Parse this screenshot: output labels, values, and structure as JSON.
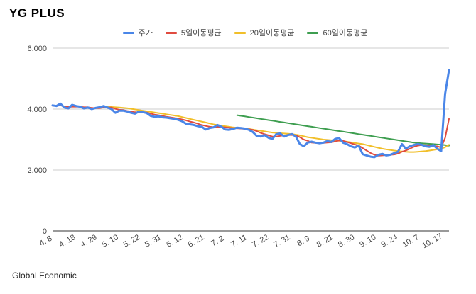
{
  "header": {
    "title": "YG PLUS"
  },
  "footer": {
    "source": "Global Economic"
  },
  "chart_data": {
    "type": "line",
    "title": "YG PLUS",
    "xlabel": "",
    "ylabel": "",
    "ylim": [
      0,
      6000
    ],
    "y_ticks": [
      0,
      2000,
      4000,
      6000
    ],
    "y_tick_labels": [
      "0",
      "2,000",
      "4,000",
      "6,000"
    ],
    "x_tick_labels": [
      "4. 8",
      "4. 18",
      "4. 29",
      "5. 10",
      "5. 22",
      "5. 31",
      "6. 12",
      "6. 21",
      "7. 2",
      "7. 11",
      "7. 22",
      "7. 31",
      "8. 9",
      "8. 21",
      "8. 30",
      "9. 10",
      "9. 24",
      "10. 7",
      "10. 17"
    ],
    "grid": true,
    "legend_position": "top",
    "series": [
      {
        "name": "주가",
        "color": "#4a86e8",
        "values": [
          4120,
          4100,
          4180,
          4050,
          4020,
          4140,
          4100,
          4080,
          4020,
          4050,
          4000,
          4040,
          4060,
          4100,
          4050,
          4000,
          3880,
          3950,
          3950,
          3920,
          3880,
          3850,
          3920,
          3900,
          3870,
          3780,
          3750,
          3760,
          3730,
          3720,
          3700,
          3680,
          3650,
          3600,
          3520,
          3500,
          3480,
          3440,
          3420,
          3330,
          3380,
          3400,
          3480,
          3420,
          3330,
          3320,
          3350,
          3390,
          3380,
          3360,
          3320,
          3250,
          3120,
          3100,
          3150,
          3060,
          3020,
          3180,
          3200,
          3100,
          3150,
          3180,
          3100,
          2850,
          2780,
          2900,
          2930,
          2900,
          2880,
          2900,
          2950,
          2920,
          3020,
          3050,
          2900,
          2850,
          2780,
          2740,
          2800,
          2520,
          2480,
          2440,
          2420,
          2500,
          2530,
          2480,
          2500,
          2550,
          2600,
          2850,
          2700,
          2780,
          2820,
          2850,
          2830,
          2780,
          2760,
          2820,
          2700,
          2620,
          4500,
          5280
        ]
      },
      {
        "name": "5일이동평균",
        "color": "#e04b3f",
        "values": [
          4110,
          4105,
          4120,
          4090,
          4070,
          4080,
          4080,
          4080,
          4060,
          4060,
          4040,
          4030,
          4030,
          4050,
          4050,
          4050,
          4010,
          3980,
          3970,
          3940,
          3920,
          3900,
          3890,
          3890,
          3890,
          3850,
          3820,
          3800,
          3780,
          3750,
          3730,
          3710,
          3690,
          3660,
          3630,
          3590,
          3560,
          3520,
          3480,
          3450,
          3420,
          3410,
          3420,
          3410,
          3400,
          3390,
          3380,
          3370,
          3360,
          3350,
          3340,
          3320,
          3280,
          3220,
          3180,
          3140,
          3100,
          3100,
          3120,
          3140,
          3150,
          3150,
          3140,
          3080,
          3000,
          2960,
          2900,
          2890,
          2880,
          2890,
          2900,
          2910,
          2940,
          2970,
          2960,
          2920,
          2880,
          2840,
          2800,
          2720,
          2640,
          2560,
          2500,
          2470,
          2480,
          2490,
          2500,
          2510,
          2540,
          2600,
          2640,
          2700,
          2760,
          2800,
          2820,
          2820,
          2800,
          2790,
          2780,
          2740,
          3050,
          3680
        ]
      },
      {
        "name": "20일이동평균",
        "color": "#f1bf2a",
        "values": [
          null,
          null,
          null,
          null,
          null,
          null,
          null,
          null,
          null,
          null,
          null,
          null,
          null,
          null,
          4080,
          4070,
          4060,
          4050,
          4040,
          4030,
          4010,
          3990,
          3970,
          3950,
          3930,
          3910,
          3890,
          3870,
          3850,
          3830,
          3810,
          3790,
          3770,
          3740,
          3710,
          3680,
          3650,
          3620,
          3590,
          3560,
          3530,
          3500,
          3480,
          3460,
          3440,
          3420,
          3400,
          3390,
          3380,
          3370,
          3350,
          3330,
          3310,
          3290,
          3270,
          3250,
          3230,
          3220,
          3210,
          3200,
          3190,
          3180,
          3160,
          3140,
          3110,
          3080,
          3060,
          3040,
          3020,
          3000,
          2990,
          2980,
          2970,
          2960,
          2950,
          2930,
          2910,
          2890,
          2870,
          2850,
          2820,
          2790,
          2760,
          2730,
          2700,
          2680,
          2660,
          2640,
          2620,
          2610,
          2600,
          2590,
          2590,
          2600,
          2610,
          2620,
          2640,
          2660,
          2680,
          2700,
          2750,
          2830
        ]
      },
      {
        "name": "60일이동평균",
        "color": "#3e9e50",
        "values": [
          null,
          null,
          null,
          null,
          null,
          null,
          null,
          null,
          null,
          null,
          null,
          null,
          null,
          null,
          null,
          null,
          null,
          null,
          null,
          null,
          null,
          null,
          null,
          null,
          null,
          null,
          null,
          null,
          null,
          null,
          null,
          null,
          null,
          null,
          null,
          null,
          null,
          null,
          null,
          null,
          null,
          null,
          null,
          null,
          null,
          null,
          null,
          3800,
          3780,
          3760,
          3740,
          3720,
          3700,
          3680,
          3660,
          3640,
          3620,
          3600,
          3580,
          3560,
          3540,
          3520,
          3500,
          3480,
          3460,
          3440,
          3420,
          3400,
          3380,
          3360,
          3340,
          3320,
          3300,
          3280,
          3260,
          3240,
          3220,
          3200,
          3180,
          3160,
          3140,
          3120,
          3100,
          3080,
          3060,
          3040,
          3020,
          3000,
          2980,
          2960,
          2940,
          2920,
          2900,
          2890,
          2880,
          2870,
          2860,
          2850,
          2840,
          2830,
          2820,
          2800
        ]
      }
    ]
  }
}
